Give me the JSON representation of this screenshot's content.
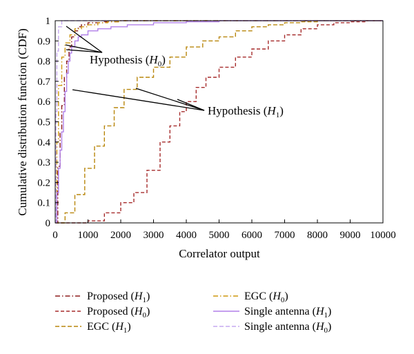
{
  "chart_data": {
    "type": "line",
    "xlabel": "Correlator output",
    "ylabel": "Cumulative distribution function (CDF)",
    "xlim": [
      0,
      10000
    ],
    "ylim": [
      0,
      1
    ],
    "x_ticks": [
      "0",
      "1000",
      "2000",
      "3000",
      "4000",
      "5000",
      "6000",
      "7000",
      "8000",
      "9000",
      "10000"
    ],
    "y_ticks": [
      "0",
      "0.1",
      "0.2",
      "0.3",
      "0.4",
      "0.5",
      "0.6",
      "0.7",
      "0.8",
      "0.9",
      "1"
    ],
    "grid": false,
    "legend_position": "bottom, two columns",
    "annotations": [
      {
        "text": "Hypothesis (H0)",
        "base": "Hypothesis (",
        "sym": "H",
        "sub": "0",
        "close": ")"
      },
      {
        "text": "Hypothesis (H1)",
        "base": "Hypothesis (",
        "sym": "H",
        "sub": "1",
        "close": ")"
      }
    ],
    "series": [
      {
        "name": "Proposed (H1)",
        "base": "Proposed (",
        "sym": "H",
        "sub": "1",
        "close": ")",
        "color": "#8b1a1a",
        "dash": "7,3,1.5,3",
        "x": [
          0,
          80,
          150,
          200,
          280,
          350,
          420,
          500,
          600,
          700,
          800,
          1000,
          1500,
          2000,
          3000,
          10000
        ],
        "y": [
          0,
          0.28,
          0.45,
          0.58,
          0.72,
          0.8,
          0.87,
          0.92,
          0.95,
          0.97,
          0.98,
          0.99,
          0.995,
          1,
          1,
          1
        ]
      },
      {
        "name": "Proposed (H0)",
        "base": "Proposed (",
        "sym": "H",
        "sub": "0",
        "close": ")",
        "color": "#a52a2a",
        "dash": "5,3",
        "x": [
          0,
          500,
          1000,
          1500,
          2000,
          2400,
          2800,
          3200,
          3500,
          3800,
          4000,
          4300,
          4600,
          5000,
          5500,
          6000,
          6500,
          7000,
          7500,
          8000,
          8500,
          9000,
          9500,
          10000
        ],
        "y": [
          0,
          0,
          0.01,
          0.05,
          0.1,
          0.15,
          0.26,
          0.4,
          0.48,
          0.55,
          0.6,
          0.67,
          0.72,
          0.77,
          0.82,
          0.86,
          0.9,
          0.93,
          0.96,
          0.98,
          0.99,
          0.995,
          1,
          1
        ]
      },
      {
        "name": "EGC (H1)",
        "base": "EGC (",
        "sym": "H",
        "sub": "1",
        "close": ")",
        "color": "#b8860b",
        "dash": "6,3",
        "x": [
          0,
          300,
          600,
          900,
          1200,
          1500,
          1800,
          2100,
          2500,
          3000,
          3500,
          4000,
          4500,
          5000,
          5500,
          6000,
          6500,
          7000,
          7500,
          8000,
          9000,
          10000
        ],
        "y": [
          0,
          0.05,
          0.14,
          0.27,
          0.38,
          0.48,
          0.57,
          0.66,
          0.72,
          0.77,
          0.82,
          0.87,
          0.9,
          0.92,
          0.95,
          0.97,
          0.98,
          0.99,
          0.995,
          1,
          1,
          1
        ]
      },
      {
        "name": "EGC (H0)",
        "base": "EGC (",
        "sym": "H",
        "sub": "0",
        "close": ")",
        "color": "#cd950c",
        "dash": "7,3,1.5,3",
        "x": [
          0,
          50,
          100,
          200,
          300,
          450,
          600,
          800,
          1000,
          1300,
          1600,
          2000,
          3000,
          10000
        ],
        "y": [
          0,
          0.4,
          0.68,
          0.82,
          0.89,
          0.93,
          0.96,
          0.97,
          0.98,
          0.99,
          0.995,
          1,
          1,
          1
        ]
      },
      {
        "name": "Single antenna (H1)",
        "base": "Single antenna (",
        "sym": "H",
        "sub": "1",
        "close": ")",
        "color": "#b07fe8",
        "dash": "",
        "x": [
          0,
          50,
          100,
          150,
          200,
          250,
          300,
          350,
          400,
          450,
          500,
          600,
          700,
          800,
          1000,
          1300,
          1700,
          2200,
          3000,
          4000,
          5000,
          10000
        ],
        "y": [
          0,
          0.15,
          0.27,
          0.36,
          0.45,
          0.55,
          0.65,
          0.74,
          0.8,
          0.84,
          0.87,
          0.9,
          0.92,
          0.93,
          0.95,
          0.96,
          0.97,
          0.98,
          0.99,
          0.995,
          1,
          1
        ]
      },
      {
        "name": "Single antenna (H0)",
        "base": "Single antenna (",
        "sym": "H",
        "sub": "0",
        "close": ")",
        "color": "#c6a9f0",
        "dash": "6,3",
        "x": [
          0,
          20,
          50,
          100,
          200,
          400,
          10000
        ],
        "y": [
          0,
          0.55,
          0.85,
          0.97,
          1,
          1,
          1
        ]
      }
    ]
  }
}
